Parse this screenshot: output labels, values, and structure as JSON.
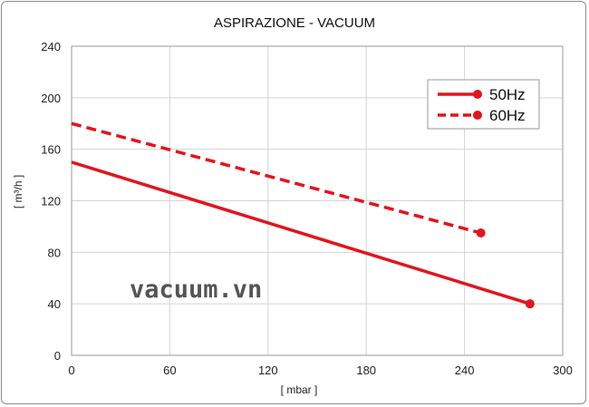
{
  "chart_data": {
    "type": "line",
    "title": "ASPIRAZIONE - VACUUM",
    "xlabel": "[ mbar ]",
    "ylabel": "[ m³/h ]",
    "xlim": [
      0,
      300
    ],
    "ylim": [
      0,
      240
    ],
    "xticks": [
      0,
      60,
      120,
      180,
      240,
      300
    ],
    "yticks": [
      0,
      40,
      80,
      120,
      160,
      200,
      240
    ],
    "grid": true,
    "legend_position": "top-right",
    "series": [
      {
        "name": "50Hz",
        "style": "solid",
        "color": "#e3141c",
        "x": [
          0,
          280
        ],
        "y": [
          150,
          40
        ]
      },
      {
        "name": "60Hz",
        "style": "dashed",
        "color": "#e3141c",
        "x": [
          0,
          250
        ],
        "y": [
          180,
          95
        ]
      }
    ],
    "watermark": "vacuum.vn"
  }
}
